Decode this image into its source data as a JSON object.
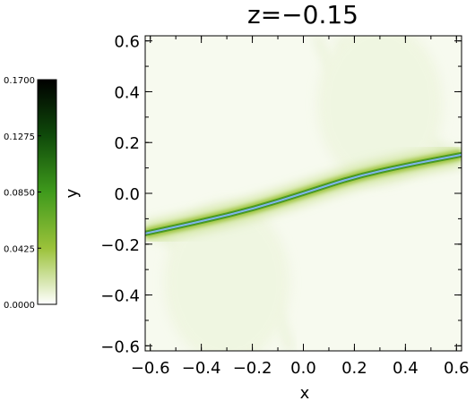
{
  "chart_data": {
    "type": "heatmap",
    "title": "z=−0.15",
    "xlabel": "x",
    "ylabel": "y",
    "xlim": [
      -0.62,
      0.62
    ],
    "ylim": [
      -0.62,
      0.62
    ],
    "x_ticks": [
      "−0.6",
      "−0.4",
      "−0.2",
      "0.0",
      "0.2",
      "0.4",
      "0.6"
    ],
    "y_ticks": [
      "−0.6",
      "−0.4",
      "−0.2",
      "0.0",
      "0.2",
      "0.4",
      "0.6"
    ],
    "x_tick_values": [
      -0.6,
      -0.4,
      -0.2,
      0.0,
      0.2,
      0.4,
      0.6
    ],
    "y_tick_values": [
      -0.6,
      -0.4,
      -0.2,
      0.0,
      0.2,
      0.4,
      0.6
    ],
    "colorbar": {
      "range": [
        0.0,
        0.17
      ],
      "tick_values": [
        0.0,
        0.0425,
        0.085,
        0.1275,
        0.17
      ],
      "tick_labels": [
        "0.0000",
        "0.0425",
        "0.0850",
        "0.1275",
        "0.1700"
      ],
      "colors": [
        "#ffffff",
        "#9bc23a",
        "#3f9a1c",
        "#0f4a0a",
        "#000000"
      ]
    },
    "field_line": {
      "color": "#7fb7e6",
      "x": [
        -0.62,
        -0.4,
        -0.2,
        0.0,
        0.2,
        0.4,
        0.62
      ],
      "y": [
        -0.158,
        -0.11,
        -0.062,
        0.0,
        0.065,
        0.11,
        0.152
      ]
    },
    "grid": false
  }
}
